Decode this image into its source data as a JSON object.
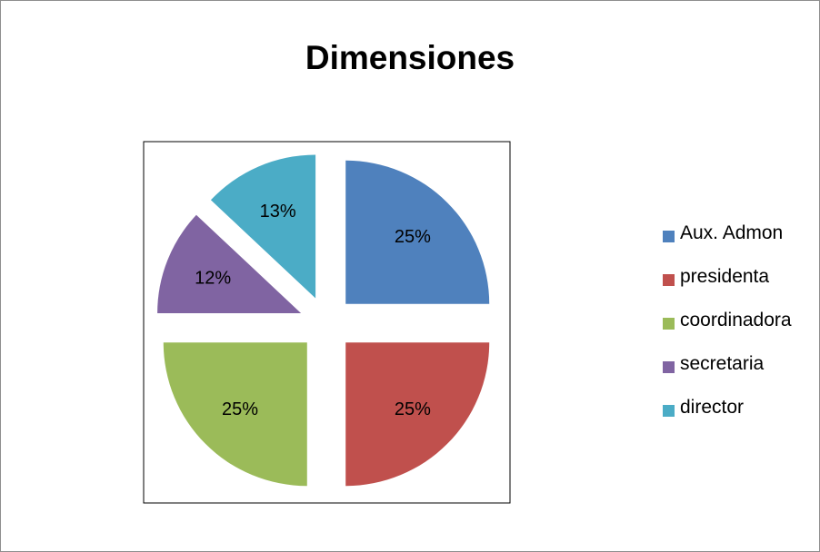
{
  "chart_data": {
    "type": "pie",
    "title": "Dimensiones",
    "categories": [
      "Aux. Admon",
      "presidenta",
      "coordinadora",
      "secretaria",
      "director"
    ],
    "values": [
      25,
      25,
      25,
      12,
      13
    ],
    "data_labels": [
      "25%",
      "25%",
      "25%",
      "12%",
      "13%"
    ],
    "colors": [
      "#4f81bd",
      "#c0504d",
      "#9bbb59",
      "#8064a2",
      "#4bacc6"
    ],
    "exploded": true,
    "legend_position": "right"
  }
}
